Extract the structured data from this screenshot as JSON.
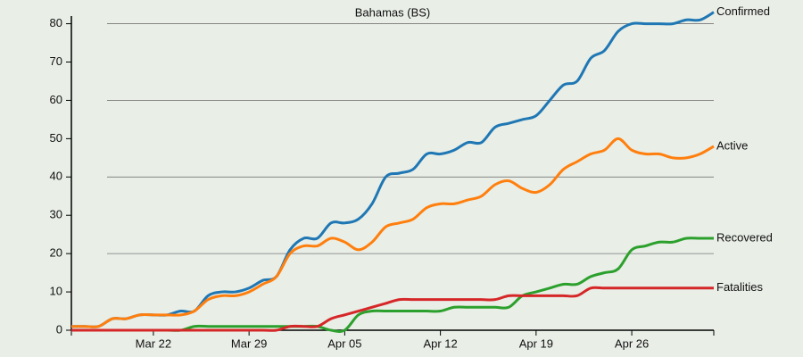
{
  "chart_data": {
    "type": "line",
    "title": "Bahamas (BS)",
    "categories": [
      null,
      null,
      null,
      null,
      null,
      null,
      "Mar 22",
      null,
      null,
      null,
      null,
      null,
      null,
      "Mar 29",
      null,
      null,
      null,
      null,
      null,
      null,
      "Apr 05",
      null,
      null,
      null,
      null,
      null,
      null,
      "Apr 12",
      null,
      null,
      null,
      null,
      null,
      null,
      "Apr 19",
      null,
      null,
      null,
      null,
      null,
      null,
      "Apr 26",
      null,
      null,
      null,
      null,
      null,
      null
    ],
    "series": [
      {
        "name": "Confirmed",
        "color": "#1f77b4",
        "values": [
          1,
          1,
          1,
          3,
          3,
          4,
          4,
          4,
          5,
          5,
          9,
          10,
          10,
          11,
          13,
          14,
          21,
          24,
          24,
          28,
          28,
          29,
          33,
          40,
          41,
          42,
          46,
          46,
          47,
          49,
          49,
          53,
          54,
          55,
          56,
          60,
          64,
          65,
          71,
          73,
          78,
          80,
          80,
          80,
          80,
          81,
          81,
          83
        ]
      },
      {
        "name": "Active",
        "color": "#ff7f0e",
        "values": [
          1,
          1,
          1,
          3,
          3,
          4,
          4,
          4,
          4,
          5,
          8,
          9,
          9,
          10,
          12,
          14,
          20,
          22,
          22,
          24,
          23,
          21,
          23,
          27,
          28,
          29,
          32,
          33,
          33,
          34,
          35,
          38,
          39,
          37,
          36,
          38,
          42,
          44,
          46,
          47,
          50,
          47,
          46,
          46,
          45,
          45,
          46,
          48
        ]
      },
      {
        "name": "Recovered",
        "color": "#2ca02c",
        "values": [
          0,
          0,
          0,
          0,
          0,
          0,
          0,
          0,
          0,
          1,
          1,
          1,
          1,
          1,
          1,
          1,
          1,
          1,
          1,
          0,
          0,
          4,
          5,
          5,
          5,
          5,
          5,
          5,
          6,
          6,
          6,
          6,
          6,
          9,
          10,
          11,
          12,
          12,
          14,
          15,
          16,
          21,
          22,
          23,
          23,
          24,
          24,
          24
        ]
      },
      {
        "name": "Fatalities",
        "color": "#d62728",
        "values": [
          0,
          0,
          0,
          0,
          0,
          0,
          0,
          0,
          0,
          0,
          0,
          0,
          0,
          0,
          0,
          0,
          1,
          1,
          1,
          3,
          4,
          5,
          6,
          7,
          8,
          8,
          8,
          8,
          8,
          8,
          8,
          8,
          9,
          9,
          9,
          9,
          9,
          9,
          11,
          11,
          11,
          11,
          11,
          11,
          11,
          11,
          11,
          11
        ]
      }
    ],
    "ylim": [
      0,
      82
    ],
    "yticks": [
      0,
      10,
      20,
      30,
      40,
      50,
      60,
      70,
      80
    ],
    "grid": true
  }
}
